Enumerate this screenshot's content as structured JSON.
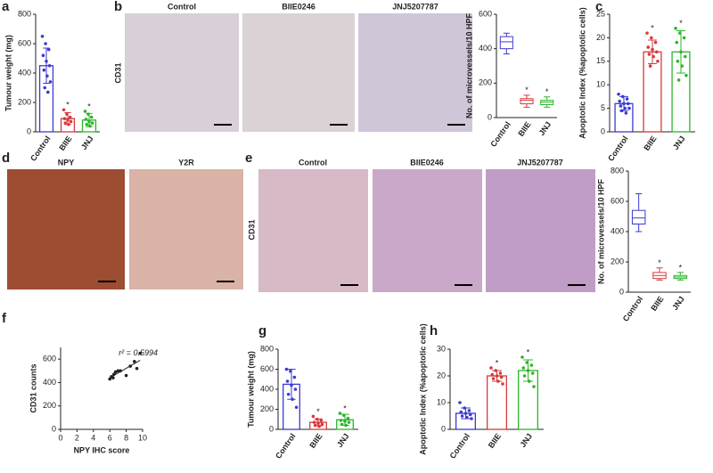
{
  "chart_data": [
    {
      "type": "bar",
      "panel": "a",
      "ylabel": "Tumour weight (mg)",
      "categories": [
        "Control",
        "BIIE",
        "JNJ"
      ],
      "colors": [
        "#3b3bd1",
        "#d63a3a",
        "#2bb52b"
      ],
      "values": [
        450,
        90,
        80
      ],
      "errors": [
        120,
        40,
        45
      ],
      "points": [
        [
          650,
          600,
          560,
          520,
          480,
          450,
          420,
          380,
          340,
          300,
          270
        ],
        [
          150,
          120,
          100,
          90,
          80,
          70,
          60,
          50
        ],
        [
          140,
          120,
          100,
          85,
          70,
          60,
          50,
          40
        ]
      ],
      "annotations": [
        null,
        "*",
        "*"
      ],
      "ylim": [
        0,
        800
      ],
      "yticks": [
        0,
        200,
        400,
        600,
        800
      ]
    },
    {
      "type": "box",
      "panel": null,
      "ylabel": "No. of microvessels/10 HPF",
      "categories": [
        "Control",
        "BIIE",
        "JNJ"
      ],
      "colors": [
        "#3b3bd1",
        "#d63a3a",
        "#2bb52b"
      ],
      "boxes": [
        [
          370,
          400,
          440,
          470,
          490
        ],
        [
          60,
          80,
          100,
          110,
          130
        ],
        [
          60,
          75,
          90,
          100,
          120
        ]
      ],
      "annotations": [
        null,
        "*",
        "*"
      ],
      "ylim": [
        0,
        600
      ],
      "yticks": [
        0,
        200,
        400,
        600
      ]
    },
    {
      "type": "bar",
      "panel": "c",
      "ylabel": "Apoptotic Index (%apoptotic cells)",
      "categories": [
        "Control",
        "BIIE",
        "JNJ"
      ],
      "colors": [
        "#3b3bd1",
        "#d63a3a",
        "#2bb52b"
      ],
      "values": [
        6,
        17,
        17
      ],
      "errors": [
        1.5,
        2.5,
        4.5
      ],
      "points": [
        [
          8,
          7.5,
          7,
          6.5,
          6,
          6,
          5.5,
          5,
          5,
          4.5,
          4
        ],
        [
          21,
          20,
          19,
          18,
          17.5,
          17,
          16.5,
          16,
          15,
          14
        ],
        [
          22,
          21,
          20,
          19,
          17,
          16,
          15,
          14,
          12,
          11
        ]
      ],
      "annotations": [
        null,
        "*",
        "*"
      ],
      "ylim": [
        0,
        25
      ],
      "yticks": [
        0,
        5,
        10,
        15,
        20,
        25
      ]
    },
    {
      "type": "box",
      "panel": null,
      "ylabel": "No. of microvessels/10 HPF",
      "categories": [
        "Control",
        "BIIE",
        "JNJ"
      ],
      "colors": [
        "#3b3bd1",
        "#d63a3a",
        "#2bb52b"
      ],
      "boxes": [
        [
          400,
          450,
          490,
          540,
          650
        ],
        [
          80,
          90,
          110,
          130,
          160
        ],
        [
          80,
          90,
          100,
          110,
          130
        ]
      ],
      "annotations": [
        null,
        "*",
        "*"
      ],
      "ylim": [
        0,
        800
      ],
      "yticks": [
        0,
        200,
        400,
        600,
        800
      ]
    },
    {
      "type": "scatter",
      "panel": "f",
      "ylabel": "CD31 counts",
      "xlabel": "NPY IHC score",
      "color": "#222222",
      "x": [
        6,
        6.2,
        6.4,
        6.5,
        6.7,
        7,
        7.3,
        8,
        8.5,
        9,
        9.3,
        9.7
      ],
      "y": [
        430,
        450,
        440,
        470,
        490,
        500,
        500,
        460,
        540,
        580,
        520,
        650
      ],
      "fit": {
        "x": [
          6,
          9.7
        ],
        "y": [
          440,
          590
        ]
      },
      "annotation": "r² = 0.5994",
      "xlim": [
        0,
        10
      ],
      "xticks": [
        0,
        2,
        4,
        6,
        8,
        10
      ],
      "ylim": [
        0,
        700
      ],
      "yticks": [
        0,
        200,
        400,
        600
      ]
    },
    {
      "type": "bar",
      "panel": "g",
      "ylabel": "Tumour weight (mg)",
      "categories": [
        "Control",
        "BIIE",
        "JNJ"
      ],
      "colors": [
        "#3b3bd1",
        "#d63a3a",
        "#2bb52b"
      ],
      "values": [
        450,
        70,
        95
      ],
      "errors": [
        150,
        35,
        55
      ],
      "points": [
        [
          600,
          580,
          520,
          480,
          440,
          400,
          350,
          300,
          220
        ],
        [
          130,
          100,
          90,
          70,
          60,
          50,
          40,
          30
        ],
        [
          160,
          140,
          110,
          90,
          80,
          70,
          50,
          40
        ]
      ],
      "annotations": [
        null,
        "*",
        "*"
      ],
      "ylim": [
        0,
        800
      ],
      "yticks": [
        0,
        200,
        400,
        600,
        800
      ]
    },
    {
      "type": "bar",
      "panel": "h",
      "ylabel": "Apoptotic Index (%apoptotic cells)",
      "categories": [
        "Control",
        "BIIE",
        "JNJ"
      ],
      "colors": [
        "#3b3bd1",
        "#d63a3a",
        "#2bb52b"
      ],
      "values": [
        6,
        20,
        22
      ],
      "errors": [
        2,
        2,
        4
      ],
      "points": [
        [
          10,
          8,
          7,
          6.5,
          6,
          5.5,
          5,
          4.5,
          4
        ],
        [
          23,
          22,
          21,
          20.5,
          20,
          19.5,
          19,
          18,
          17
        ],
        [
          27,
          25,
          24,
          23,
          22,
          21,
          20,
          18,
          16
        ]
      ],
      "annotations": [
        null,
        "*",
        "*"
      ],
      "ylim": [
        0,
        30
      ],
      "yticks": [
        0,
        10,
        20,
        30
      ]
    }
  ],
  "micrographs": [
    {
      "panel": "b",
      "stain": "CD31",
      "titles": [
        "Control",
        "BIIE0246",
        "JNJ5207787"
      ]
    },
    {
      "panel": "d",
      "titles": [
        "NPY",
        "Y2R"
      ]
    },
    {
      "panel": "e",
      "stain": "CD31",
      "titles": [
        "Control",
        "BIIE0246",
        "JNJ5207787"
      ]
    }
  ]
}
